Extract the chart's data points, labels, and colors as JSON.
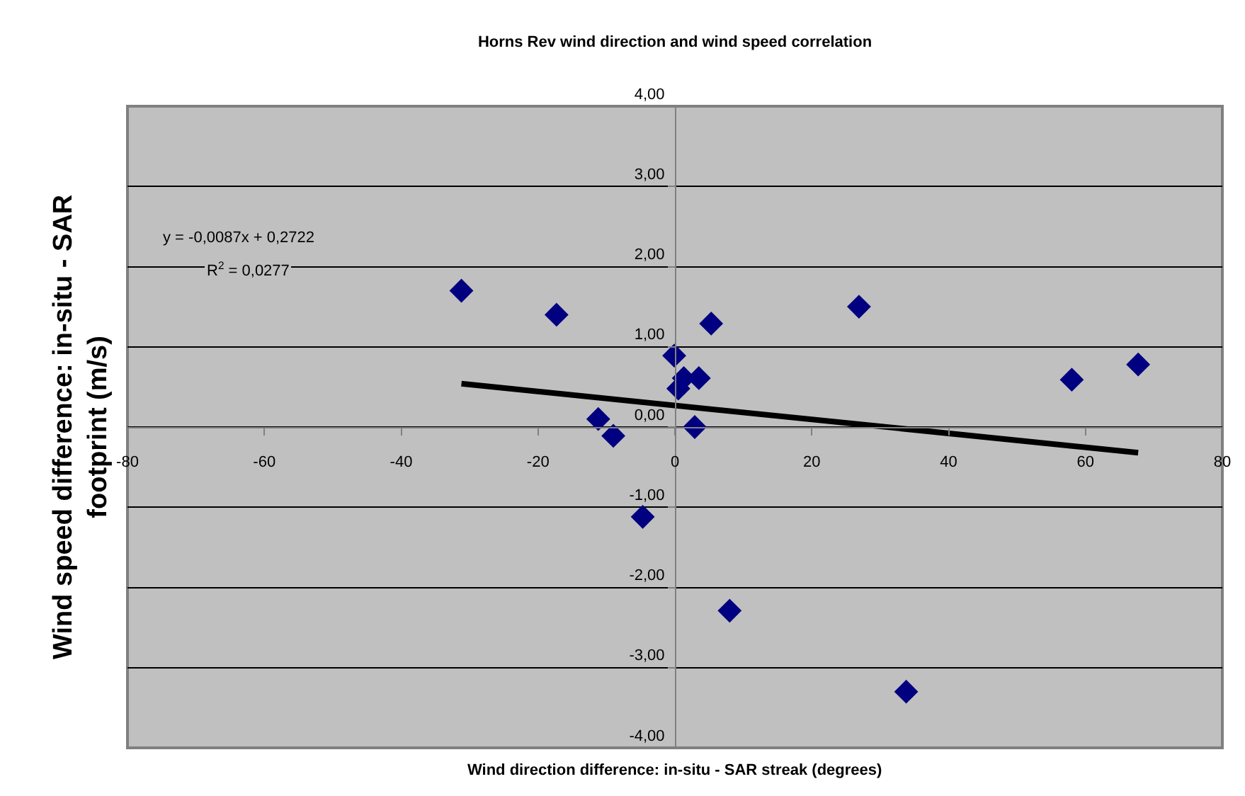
{
  "chart_data": {
    "type": "scatter",
    "title": "Horns Rev wind direction and wind speed correlation",
    "xlabel": "Wind direction difference: in-situ - SAR streak (degrees)",
    "ylabel": "Wind speed difference: in-situ - SAR footprint (m/s)",
    "series": [
      {
        "type": "scatter",
        "color": "#000080",
        "marker": "diamond",
        "x": [
          -31.2,
          -17.3,
          -11.2,
          -9.0,
          -4.7,
          -0.1,
          0.5,
          1.3,
          3.5,
          2.9,
          5.3,
          8.0,
          26.9,
          33.8,
          58.0,
          67.7
        ],
        "values": [
          1.7,
          1.4,
          0.1,
          -0.11,
          -1.12,
          0.89,
          0.48,
          0.61,
          0.61,
          0.0,
          1.29,
          -2.29,
          1.5,
          -3.3,
          0.59,
          0.78
        ]
      },
      {
        "type": "line",
        "color": "#000000",
        "marker": "none",
        "line_style": "solid",
        "x": [
          -31.2,
          67.7
        ],
        "values": [
          0.54,
          -0.32
        ]
      }
    ],
    "annotations": [
      "y = -0,0087x + 0,2722",
      "R$^{2}$ = 0,0277"
    ],
    "xlim": [
      -80,
      80
    ],
    "xticks": [
      -80,
      -60,
      -40,
      -20,
      0,
      20,
      40,
      60,
      80
    ],
    "ylim": [
      -4,
      4
    ],
    "yticks": [
      {
        "value": -4,
        "label": "-4,00"
      },
      {
        "value": -3,
        "label": "-3,00"
      },
      {
        "value": -2,
        "label": "-2,00"
      },
      {
        "value": -1,
        "label": "-1,00"
      },
      {
        "value": 0,
        "label": "0,00"
      },
      {
        "value": 1,
        "label": "1,00"
      },
      {
        "value": 2,
        "label": "2,00"
      },
      {
        "value": 3,
        "label": "3,00"
      },
      {
        "value": 4,
        "label": "4,00"
      }
    ],
    "grid": "y"
  }
}
